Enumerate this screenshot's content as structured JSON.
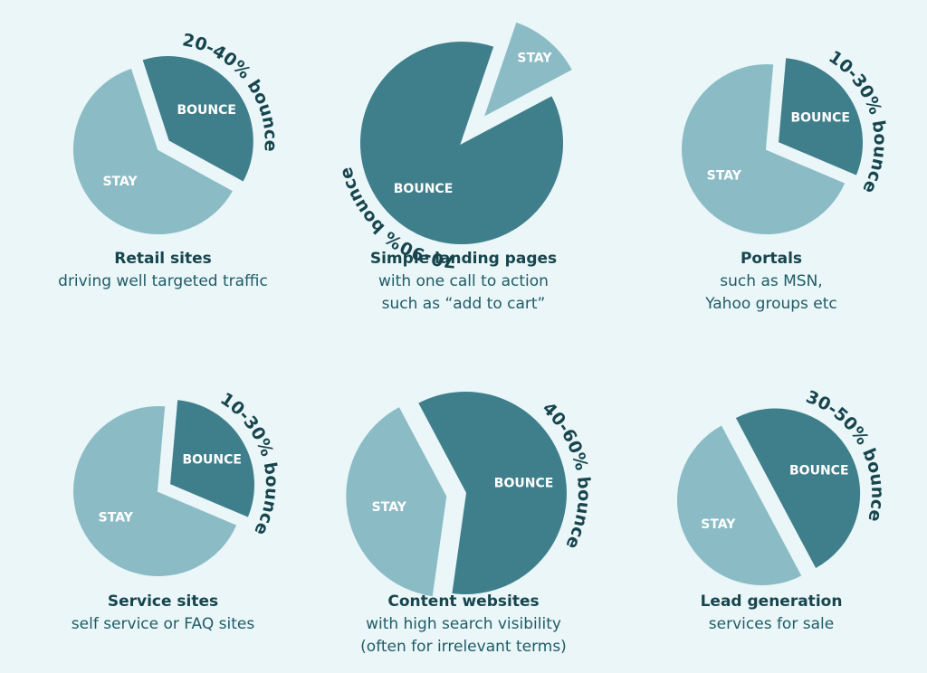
{
  "colors": {
    "bounce": "#3f7f8c",
    "stay": "#8bbcc5",
    "background": "#eaf6f8",
    "text": "#17454e"
  },
  "chart_data": [
    {
      "type": "pie",
      "range_label": "20-40% bounce",
      "slices": [
        {
          "label": "BOUNCE",
          "value": 38
        },
        {
          "label": "STAY",
          "value": 62
        }
      ],
      "exploded": "BOUNCE",
      "title": "Retail sites",
      "subtitle": [
        "driving well targeted traffic"
      ]
    },
    {
      "type": "pie",
      "range_label": "70-90% bounce",
      "slices": [
        {
          "label": "BOUNCE",
          "value": 88
        },
        {
          "label": "STAY",
          "value": 12
        }
      ],
      "exploded": "STAY",
      "title": "Simple landing pages",
      "subtitle": [
        "with one call to action",
        "such as “add to cart”"
      ]
    },
    {
      "type": "pie",
      "range_label": "10-30% bounce",
      "slices": [
        {
          "label": "BOUNCE",
          "value": 30
        },
        {
          "label": "STAY",
          "value": 70
        }
      ],
      "exploded": "BOUNCE",
      "title": "Portals",
      "subtitle": [
        "such as MSN,",
        "Yahoo groups etc"
      ]
    },
    {
      "type": "pie",
      "range_label": "10-30% bounce",
      "slices": [
        {
          "label": "BOUNCE",
          "value": 30
        },
        {
          "label": "STAY",
          "value": 70
        }
      ],
      "exploded": "BOUNCE",
      "title": "Service sites",
      "subtitle": [
        "self service or FAQ sites"
      ]
    },
    {
      "type": "pie",
      "range_label": "40-60% bounce",
      "slices": [
        {
          "label": "BOUNCE",
          "value": 60
        },
        {
          "label": "STAY",
          "value": 40
        }
      ],
      "exploded": "STAY",
      "title": "Content websites",
      "subtitle": [
        "with high search visibility",
        "(often for irrelevant terms)"
      ]
    },
    {
      "type": "pie",
      "range_label": "30-50% bounce",
      "slices": [
        {
          "label": "BOUNCE",
          "value": 50
        },
        {
          "label": "STAY",
          "value": 50
        }
      ],
      "exploded": "BOUNCE",
      "title": "Lead generation",
      "subtitle": [
        "services for sale"
      ]
    }
  ]
}
